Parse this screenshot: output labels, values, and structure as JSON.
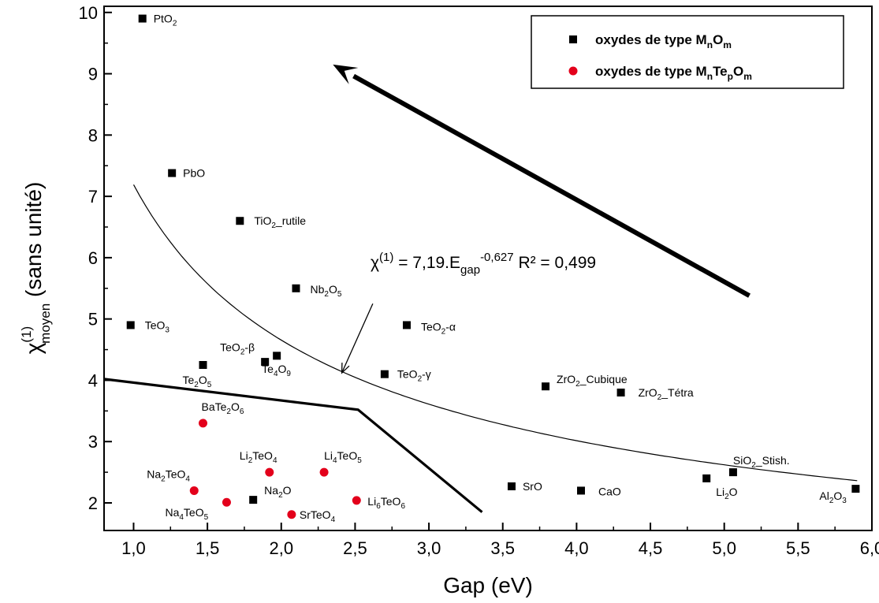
{
  "chart_data": {
    "type": "scatter",
    "xlabel": "Gap (eV)",
    "ylabel": {
      "base": "χ",
      "sup": "(1)",
      "sub": "moyen",
      "rest": " (sans unité)"
    },
    "xlim": [
      0.8,
      6.0
    ],
    "ylim": [
      1.55,
      10.1
    ],
    "xticks": [
      "1,0",
      "1,5",
      "2,0",
      "2,5",
      "3,0",
      "3,5",
      "4,0",
      "4,5",
      "5,0",
      "5,5",
      "6,0"
    ],
    "yticks": [
      "2",
      "3",
      "4",
      "5",
      "6",
      "7",
      "8",
      "9",
      "10"
    ],
    "grid": false,
    "legend_position": "top-right",
    "legend": [
      {
        "marker": "square",
        "color": "#000000",
        "segments": [
          [
            "oxydes de type M",
            ""
          ],
          [
            "n",
            "sub"
          ],
          [
            "O",
            ""
          ],
          [
            "m",
            "sub"
          ]
        ]
      },
      {
        "marker": "circle",
        "color": "#e3001b",
        "segments": [
          [
            "oxydes de type M",
            ""
          ],
          [
            "n",
            "sub"
          ],
          [
            "Te",
            ""
          ],
          [
            "p",
            "sub"
          ],
          [
            "O",
            ""
          ],
          [
            "m",
            "sub"
          ]
        ]
      }
    ],
    "series": [
      {
        "name": "oxydes de type MnOm",
        "marker": "square",
        "color": "#000000",
        "points": [
          {
            "x": 1.06,
            "y": 9.9,
            "label": [
              [
                "PtO",
                ""
              ],
              [
                "2",
                "sub"
              ]
            ]
          },
          {
            "x": 1.26,
            "y": 7.38,
            "label": [
              [
                "PbO",
                ""
              ]
            ]
          },
          {
            "x": 1.72,
            "y": 6.6,
            "label": [
              [
                "TiO",
                ""
              ],
              [
                "2",
                "sub"
              ],
              [
                "_rutile",
                ""
              ]
            ]
          },
          {
            "x": 2.1,
            "y": 5.5,
            "label": [
              [
                "Nb",
                ""
              ],
              [
                "2",
                "sub"
              ],
              [
                "O",
                ""
              ],
              [
                "5",
                "sub"
              ]
            ]
          },
          {
            "x": 0.98,
            "y": 4.9,
            "label": [
              [
                "TeO",
                ""
              ],
              [
                "3",
                "sub"
              ]
            ]
          },
          {
            "x": 2.85,
            "y": 4.9,
            "label": [
              [
                "TeO",
                ""
              ],
              [
                "2",
                "sub"
              ],
              [
                "-α",
                ""
              ]
            ]
          },
          {
            "x": 1.97,
            "y": 4.4,
            "label": [
              [
                "TeO",
                ""
              ],
              [
                "2",
                "sub"
              ],
              [
                "-β",
                ""
              ]
            ]
          },
          {
            "x": 1.47,
            "y": 4.25,
            "label": [
              [
                "Te",
                ""
              ],
              [
                "2",
                "sub"
              ],
              [
                "O",
                ""
              ],
              [
                "5",
                "sub"
              ]
            ]
          },
          {
            "x": 1.89,
            "y": 4.3,
            "label": [
              [
                "Te",
                ""
              ],
              [
                "4",
                "sub"
              ],
              [
                "O",
                ""
              ],
              [
                "9",
                "sub"
              ]
            ]
          },
          {
            "x": 2.7,
            "y": 4.1,
            "label": [
              [
                "TeO",
                ""
              ],
              [
                "2",
                "sub"
              ],
              [
                "-γ",
                ""
              ]
            ]
          },
          {
            "x": 3.79,
            "y": 3.9,
            "label": [
              [
                "ZrO",
                ""
              ],
              [
                "2",
                "sub"
              ],
              [
                "_Cubique",
                ""
              ]
            ]
          },
          {
            "x": 4.3,
            "y": 3.8,
            "label": [
              [
                "ZrO",
                ""
              ],
              [
                "2",
                "sub"
              ],
              [
                "_Tétra",
                ""
              ]
            ]
          },
          {
            "x": 3.56,
            "y": 2.27,
            "label": [
              [
                "SrO",
                ""
              ]
            ]
          },
          {
            "x": 4.03,
            "y": 2.2,
            "label": [
              [
                "CaO",
                ""
              ]
            ]
          },
          {
            "x": 1.81,
            "y": 2.05,
            "label": [
              [
                "Na",
                ""
              ],
              [
                "2",
                "sub"
              ],
              [
                "O",
                ""
              ]
            ]
          },
          {
            "x": 4.88,
            "y": 2.4,
            "label": [
              [
                "Li",
                ""
              ],
              [
                "2",
                "sub"
              ],
              [
                "O",
                ""
              ]
            ]
          },
          {
            "x": 5.06,
            "y": 2.5,
            "label": [
              [
                "SiO",
                ""
              ],
              [
                "2",
                "sub"
              ],
              [
                "_Stish.",
                ""
              ]
            ]
          },
          {
            "x": 5.89,
            "y": 2.23,
            "label": [
              [
                "Al",
                ""
              ],
              [
                "2",
                "sub"
              ],
              [
                "O",
                ""
              ],
              [
                "3",
                "sub"
              ]
            ]
          }
        ]
      },
      {
        "name": "oxydes de type MnTepOm",
        "marker": "circle",
        "color": "#e3001b",
        "points": [
          {
            "x": 1.47,
            "y": 3.3,
            "label": [
              [
                "BaTe",
                ""
              ],
              [
                "2",
                "sub"
              ],
              [
                "O",
                ""
              ],
              [
                "6",
                "sub"
              ]
            ]
          },
          {
            "x": 1.92,
            "y": 2.5,
            "label": [
              [
                "Li",
                ""
              ],
              [
                "2",
                "sub"
              ],
              [
                "TeO",
                ""
              ],
              [
                "4",
                "sub"
              ]
            ]
          },
          {
            "x": 2.29,
            "y": 2.5,
            "label": [
              [
                "Li",
                ""
              ],
              [
                "4",
                "sub"
              ],
              [
                "TeO",
                ""
              ],
              [
                "5",
                "sub"
              ]
            ]
          },
          {
            "x": 1.41,
            "y": 2.2,
            "label": [
              [
                "Na",
                ""
              ],
              [
                "2",
                "sub"
              ],
              [
                "TeO",
                ""
              ],
              [
                "4",
                "sub"
              ]
            ]
          },
          {
            "x": 1.63,
            "y": 2.01,
            "label": [
              [
                "Na",
                ""
              ],
              [
                "4",
                "sub"
              ],
              [
                "TeO",
                ""
              ],
              [
                "5",
                "sub"
              ]
            ]
          },
          {
            "x": 2.07,
            "y": 1.81,
            "label": [
              [
                "SrTeO",
                ""
              ],
              [
                "4",
                "sub"
              ]
            ]
          },
          {
            "x": 2.51,
            "y": 2.04,
            "label": [
              [
                "Li",
                ""
              ],
              [
                "6",
                "sub"
              ],
              [
                "TeO",
                ""
              ],
              [
                "6",
                "sub"
              ]
            ]
          }
        ]
      }
    ],
    "fit": {
      "a": 7.19,
      "b": -0.627,
      "x_range": [
        1.0,
        5.9
      ],
      "equation": [
        [
          "χ",
          ""
        ],
        [
          "(1)",
          "sup"
        ],
        [
          " = 7,19.E",
          ""
        ],
        [
          "gap",
          "sub"
        ],
        [
          "-0,627",
          "sup"
        ],
        [
          " R² = 0,499",
          ""
        ]
      ]
    },
    "boundary": [
      [
        0.8,
        4.02
      ],
      [
        2.52,
        3.52
      ],
      [
        3.36,
        1.85
      ]
    ],
    "trend_arrow": {
      "from": [
        5.17,
        5.38
      ],
      "to": [
        2.35,
        9.15
      ]
    },
    "fit_callout": {
      "from": [
        2.62,
        5.25
      ],
      "to": [
        2.41,
        4.12
      ]
    }
  }
}
